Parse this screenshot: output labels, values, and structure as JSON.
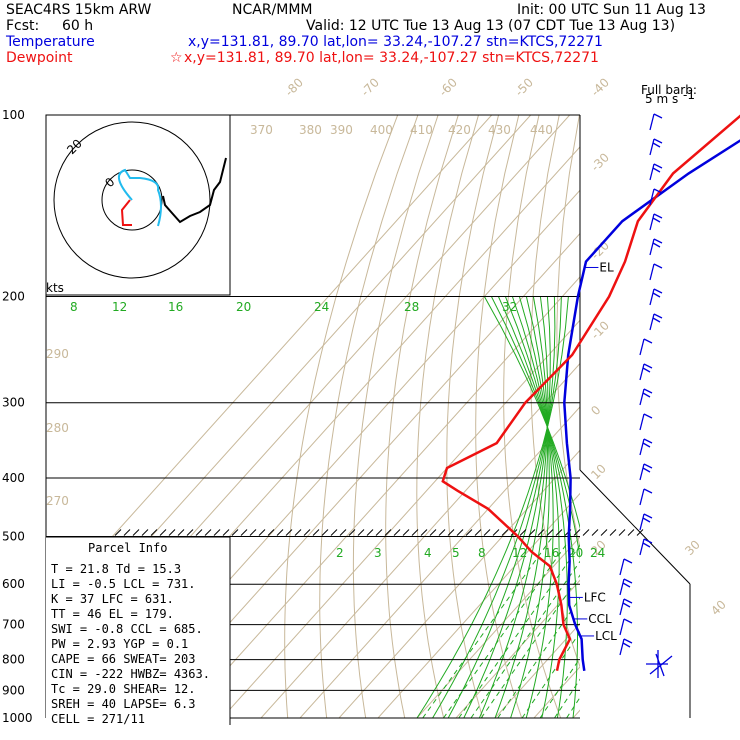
{
  "header": {
    "model": "SEAC4RS 15km ARW",
    "center": "NCAR/MMM",
    "init": "Init: 00 UTC Sun 11 Aug 13",
    "fcst_label": "Fcst:",
    "fcst_value": "60 h",
    "valid": "Valid: 12 UTC Tue 13 Aug 13 (07 CDT Tue 13 Aug 13)",
    "temp_label": "Temperature",
    "temp_info": "x,y=131.81, 89.70   lat,lon= 33.24,-107.27  stn=KTCS,72271",
    "dew_label": "Dewpoint",
    "dew_info": "x,y=131.81, 89.70   lat,lon= 33.24,-107.27  stn=KTCS,72271",
    "barb_label_1": "Full barb:",
    "barb_label_2": "5 m s",
    "barb_label_3": "-1"
  },
  "colors": {
    "temperature": "#0000dd",
    "dewpoint": "#ee1111",
    "adiabat": "#c8b89a",
    "mixing_ratio": "#22aa22",
    "moist": "#22aa22",
    "isobar": "#000000",
    "hodo_red": "#ee1111",
    "hodo_cyan": "#22bbee",
    "axis": "#000000"
  },
  "chart_data": {
    "type": "line",
    "title": "Skew-T log-P sounding",
    "pressure_labels": [
      "100",
      "200",
      "300",
      "400",
      "500",
      "600",
      "700",
      "800",
      "900",
      "1000"
    ],
    "pressure_levels": [
      100,
      200,
      300,
      400,
      500,
      600,
      700,
      800,
      900,
      1000
    ],
    "temperature_labels": [
      "-80",
      "-70",
      "-60",
      "-50",
      "-40",
      "-30",
      "-20",
      "-10",
      "0",
      "10",
      "20",
      "30",
      "40"
    ],
    "theta_labels": [
      "370",
      "380",
      "390",
      "400",
      "410",
      "420",
      "430",
      "440",
      "290",
      "280",
      "270"
    ],
    "mixing_ratio_labels_upper": [
      "8",
      "12",
      "16",
      "20",
      "24",
      "28",
      "32"
    ],
    "mixing_ratio_labels_lower": [
      "2",
      "3",
      "4",
      "5",
      "6",
      "8",
      "12",
      "16",
      "20",
      "24"
    ],
    "series": [
      {
        "name": "Temperature",
        "pressure": [
          835,
          800,
          740,
          700,
          650,
          600,
          550,
          500,
          450,
          400,
          350,
          300,
          250,
          200,
          175,
          150,
          125,
          100
        ],
        "values": [
          22,
          19,
          14,
          9,
          3,
          -2,
          -7,
          -13,
          -19,
          -26,
          -35,
          -45,
          -55,
          -66,
          -72,
          -72,
          -66,
          -56
        ]
      },
      {
        "name": "Dewpoint",
        "pressure": [
          835,
          800,
          740,
          700,
          650,
          600,
          560,
          530,
          500,
          450,
          420,
          405,
          385,
          350,
          300,
          250,
          200,
          175,
          150,
          125,
          100
        ],
        "values": [
          15,
          13,
          11,
          6,
          1,
          -5,
          -11,
          -19,
          -26,
          -40,
          -52,
          -58,
          -60,
          -53,
          -55,
          -54,
          -58,
          -62,
          -68,
          -70,
          -66
        ]
      }
    ],
    "markers": [
      {
        "label": "EL",
        "pressure": 179
      },
      {
        "label": "LFC",
        "pressure": 631
      },
      {
        "label": "CCL",
        "pressure": 685
      },
      {
        "label": "LCL",
        "pressure": 731
      }
    ],
    "hodograph_label": "kts",
    "hodograph_ring_label": "20",
    "hodograph_tick_label": "0",
    "parcel_info": {
      "title": "Parcel Info",
      "rows": [
        "T  =    21.8  Td =   15.3",
        "LI =    -0.5  LCL =  731.",
        "K  =      37  LFC =  631.",
        "TT =      46  EL =   179.",
        "SWI =   -0.8  CCL =  685.",
        "PW =   2.93  YGP =    0.1",
        "CAPE =    66  SWEAT=  203",
        "CIN =  -222  HWBZ= 4363.",
        "Tc =   29.0  SHEAR=   12.",
        "SREH =   40  LAPSE=   6.3",
        "CELL = 271/11"
      ]
    }
  }
}
